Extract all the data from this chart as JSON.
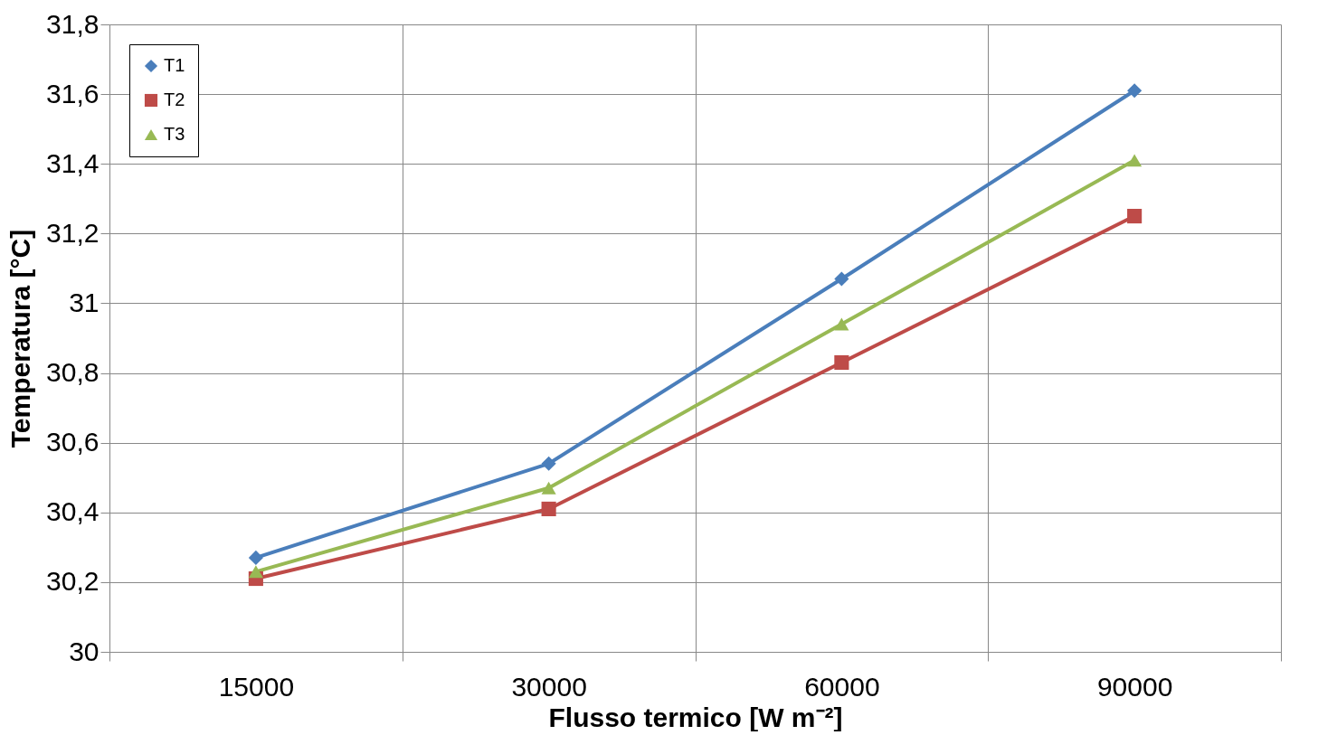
{
  "chart_data": {
    "type": "line",
    "xlabel": "Flusso termico [W m⁻²]",
    "ylabel": "Temperatura [°C]",
    "categories": [
      "15000",
      "30000",
      "60000",
      "90000"
    ],
    "ylim": [
      30,
      31.8
    ],
    "yticks": [
      30,
      {
        "value": 30.2,
        "label": "30,2"
      },
      {
        "value": 30.4,
        "label": "30,4"
      },
      {
        "value": 30.6,
        "label": "30,6"
      },
      {
        "value": 30.8,
        "label": "30,8"
      },
      31,
      {
        "value": 31.2,
        "label": "31,2"
      },
      {
        "value": 31.4,
        "label": "31,4"
      },
      {
        "value": 31.6,
        "label": "31,6"
      },
      {
        "value": 31.8,
        "label": "31,8"
      }
    ],
    "grid": true,
    "legend": "top left",
    "series": [
      {
        "name": "T1",
        "color": "#4a7ebb",
        "marker": "diamond",
        "values": [
          30.27,
          30.54,
          31.07,
          31.61
        ]
      },
      {
        "name": "T2",
        "color": "#be4b48",
        "marker": "square",
        "values": [
          30.21,
          30.41,
          30.83,
          31.25
        ]
      },
      {
        "name": "T3",
        "color": "#98b954",
        "marker": "triangle",
        "values": [
          30.23,
          30.47,
          30.94,
          31.41
        ]
      }
    ]
  }
}
